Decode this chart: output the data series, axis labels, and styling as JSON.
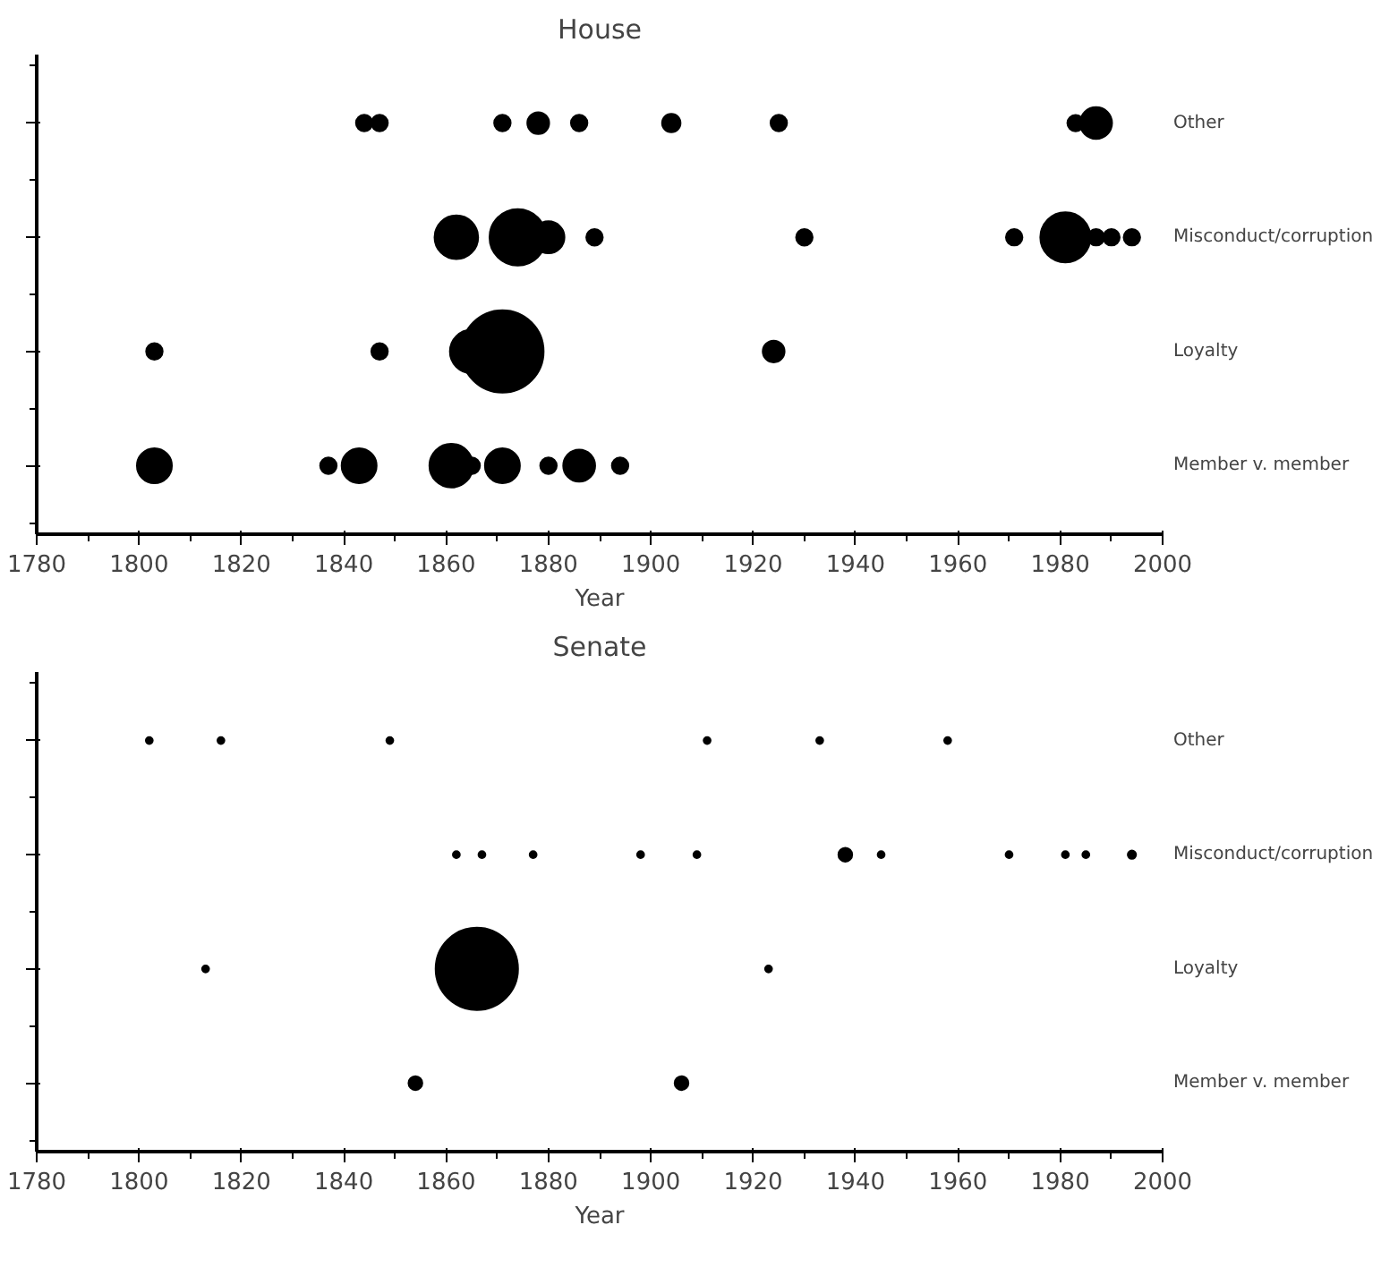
{
  "chart_data": [
    {
      "type": "bubble",
      "orientation": "horizontal",
      "title": "House",
      "xlabel": "Year",
      "xlim": [
        1780,
        2000
      ],
      "xticks": [
        1780,
        1800,
        1820,
        1840,
        1860,
        1880,
        1900,
        1920,
        1940,
        1960,
        1980,
        2000
      ],
      "categories": [
        "Other",
        "Misconduct/corruption",
        "Loyalty",
        "Member v. member"
      ],
      "grid": false,
      "marker": "circle",
      "series": [
        {
          "color": "#000000",
          "values": [
            1844,
            1862,
            1803,
            1803
          ],
          "sizes": [
            0.04,
            0.28,
            0.04,
            0.18
          ]
        },
        {
          "color": "#000000",
          "values": [
            1847,
            1874,
            1847,
            1837
          ],
          "sizes": [
            0.04,
            0.47,
            0.04,
            0.04
          ]
        },
        {
          "color": "#000000",
          "values": [
            1871,
            1880,
            1865,
            1843
          ],
          "sizes": [
            0.04,
            0.15,
            0.28,
            0.18
          ]
        },
        {
          "color": "#000000",
          "values": [
            1878,
            1889,
            1871,
            1861
          ],
          "sizes": [
            0.07,
            0.04,
            1,
            0.28
          ]
        },
        {
          "color": "#000000",
          "values": [
            1886,
            1930,
            1924,
            1865
          ],
          "sizes": [
            0.04,
            0.04,
            0.07,
            0.04
          ]
        },
        {
          "color": "#000000",
          "values": [
            1904,
            1971,
            null,
            1871
          ],
          "sizes": [
            0.05,
            0.04,
            null,
            0.18
          ]
        },
        {
          "color": "#000000",
          "values": [
            1925,
            1981,
            null,
            1880
          ],
          "sizes": [
            0.04,
            0.37,
            null,
            0.04
          ]
        },
        {
          "color": "#000000",
          "values": [
            1983,
            1987,
            null,
            1886
          ],
          "sizes": [
            0.04,
            0.04,
            null,
            0.15
          ]
        },
        {
          "color": "#000000",
          "values": [
            1987,
            1990,
            null,
            1894
          ],
          "sizes": [
            0.15,
            0.04,
            null,
            0.04
          ]
        },
        {
          "color": "#000000",
          "values": [
            null,
            1994,
            null,
            null
          ],
          "sizes": [
            null,
            0.04,
            null,
            null
          ]
        }
      ]
    },
    {
      "type": "bubble",
      "orientation": "horizontal",
      "title": "Senate",
      "xlabel": "Year",
      "xlim": [
        1780,
        2000
      ],
      "xticks": [
        1780,
        1800,
        1820,
        1840,
        1860,
        1880,
        1900,
        1920,
        1940,
        1960,
        1980,
        2000
      ],
      "categories": [
        "Other",
        "Misconduct/corruption",
        "Loyalty",
        "Member v. member"
      ],
      "grid": false,
      "marker": "circle",
      "series": [
        {
          "color": "#000000",
          "values": [
            1802,
            1862,
            1813,
            1854
          ],
          "sizes": [
            0.007,
            0.007,
            0.007,
            0.028
          ]
        },
        {
          "color": "#000000",
          "values": [
            1816,
            1867,
            1866,
            1906
          ],
          "sizes": [
            0.007,
            0.007,
            1,
            0.028
          ]
        },
        {
          "color": "#000000",
          "values": [
            1849,
            1877,
            1923,
            null
          ],
          "sizes": [
            0.007,
            0.007,
            0.007,
            null
          ]
        },
        {
          "color": "#000000",
          "values": [
            1911,
            1898,
            null,
            null
          ],
          "sizes": [
            0.007,
            0.007,
            null,
            null
          ]
        },
        {
          "color": "#000000",
          "values": [
            1933,
            1909,
            null,
            null
          ],
          "sizes": [
            0.007,
            0.007,
            null,
            null
          ]
        },
        {
          "color": "#000000",
          "values": [
            1958,
            1938,
            null,
            null
          ],
          "sizes": [
            0.007,
            0.028,
            null,
            null
          ]
        },
        {
          "color": "#000000",
          "values": [
            null,
            1945,
            null,
            null
          ],
          "sizes": [
            null,
            0.007,
            null,
            null
          ]
        },
        {
          "color": "#000000",
          "values": [
            null,
            1970,
            null,
            null
          ],
          "sizes": [
            null,
            0.007,
            null,
            null
          ]
        },
        {
          "color": "#000000",
          "values": [
            null,
            1981,
            null,
            null
          ],
          "sizes": [
            null,
            0.007,
            null,
            null
          ]
        },
        {
          "color": "#000000",
          "values": [
            null,
            1985,
            null,
            null
          ],
          "sizes": [
            null,
            0.007,
            null,
            null
          ]
        },
        {
          "color": "#000000",
          "values": [
            null,
            1994,
            null,
            null
          ],
          "sizes": [
            null,
            0.01,
            null,
            null
          ]
        }
      ]
    }
  ]
}
